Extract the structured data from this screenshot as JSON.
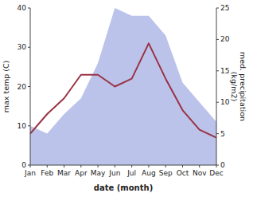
{
  "chart_data": {
    "type": "line",
    "categories": [
      "Jan",
      "Feb",
      "Mar",
      "Apr",
      "May",
      "Jun",
      "Jul",
      "Aug",
      "Sep",
      "Oct",
      "Nov",
      "Dec"
    ],
    "series": [
      {
        "type": "area",
        "color": "#b0b8e8",
        "values": [
          10,
          8,
          13,
          17,
          26,
          40,
          38,
          38,
          33,
          21,
          16,
          11
        ]
      },
      {
        "type": "line",
        "color": "#993344",
        "values": [
          8,
          13,
          17,
          23,
          23,
          20,
          22,
          31,
          22,
          14,
          9,
          7
        ]
      }
    ],
    "x_label": "date (month)",
    "y_label": "max temp (C)",
    "y2_label": "med. precipitation\n(kg/m2)",
    "ylim": [
      0,
      40
    ],
    "yticks": [
      0,
      10,
      20,
      30,
      40
    ],
    "y2lim": [
      0,
      25
    ],
    "y2ticks": [
      0,
      5,
      10,
      15,
      20,
      25
    ],
    "grid": false
  }
}
